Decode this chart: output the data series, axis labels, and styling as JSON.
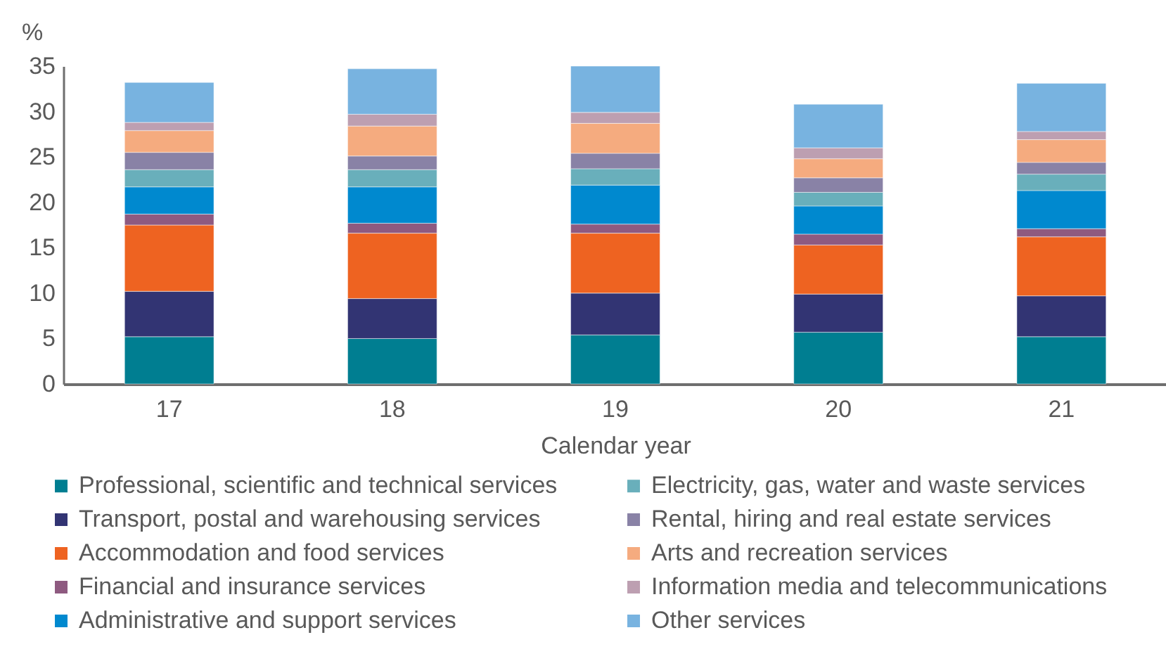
{
  "chart_data": {
    "type": "bar",
    "stacked": true,
    "xlabel": "Calendar year",
    "ylabel": "%",
    "categories": [
      "17",
      "18",
      "19",
      "20",
      "21"
    ],
    "ylim": [
      0,
      35
    ],
    "yticks": [
      0,
      5,
      10,
      15,
      20,
      25,
      30,
      35
    ],
    "grid": false,
    "legend": "bottom",
    "series": [
      {
        "name": "Professional, scientific and technical services",
        "color": "#007e91",
        "values": [
          5.2,
          5.0,
          5.4,
          5.7,
          5.2
        ]
      },
      {
        "name": "Transport, postal and warehousing services",
        "color": "#323473",
        "values": [
          5.0,
          4.4,
          4.6,
          4.2,
          4.5
        ]
      },
      {
        "name": "Accommodation and food services",
        "color": "#ee6321",
        "values": [
          7.3,
          7.2,
          6.6,
          5.4,
          6.5
        ]
      },
      {
        "name": "Financial and insurance services",
        "color": "#8e5a80",
        "values": [
          1.2,
          1.1,
          1.0,
          1.2,
          0.9
        ]
      },
      {
        "name": "Administrative and support services",
        "color": "#0089cf",
        "values": [
          3.0,
          4.0,
          4.3,
          3.1,
          4.2
        ]
      },
      {
        "name": "Electricity, gas, water and waste services",
        "color": "#69afbb",
        "values": [
          1.9,
          1.9,
          1.8,
          1.5,
          1.8
        ]
      },
      {
        "name": "Rental, hiring and real estate services",
        "color": "#8982a6",
        "values": [
          1.9,
          1.5,
          1.7,
          1.6,
          1.3
        ]
      },
      {
        "name": "Arts and recreation services",
        "color": "#f5ab7f",
        "values": [
          2.4,
          3.3,
          3.3,
          2.1,
          2.5
        ]
      },
      {
        "name": "Information media and telecommunications",
        "color": "#bd9fb1",
        "values": [
          0.9,
          1.3,
          1.2,
          1.2,
          0.9
        ]
      },
      {
        "name": "Other services",
        "color": "#78b3e0",
        "values": [
          4.4,
          5.0,
          5.1,
          4.8,
          5.3
        ]
      }
    ]
  }
}
